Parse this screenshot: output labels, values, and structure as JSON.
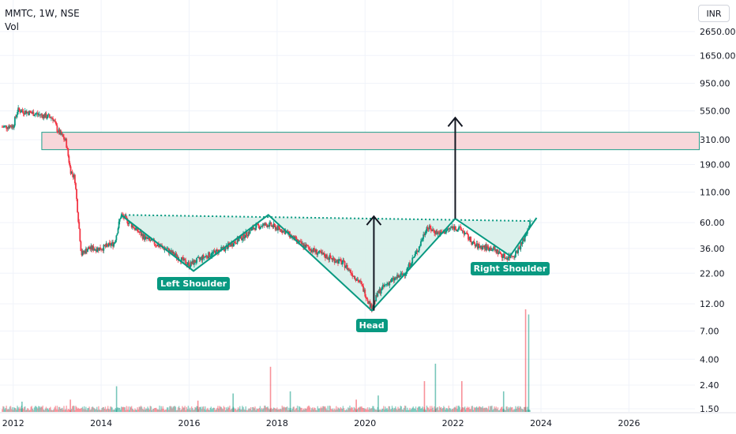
{
  "header": {
    "symbol_line": "MMTC, 1W, NSE",
    "indicator": "Vol",
    "currency": "INR"
  },
  "colors": {
    "up": "#089981",
    "down": "#f23645",
    "zone_fill": "#f8d7da",
    "zone_border": "#1e9e8a",
    "neckline": "#089981",
    "pattern_fill": "#d8f0ea",
    "arrow": "#131722"
  },
  "chart_data": {
    "type": "candlestick",
    "title": "MMTC, 1W, NSE",
    "y_scale": "log",
    "y_ticks": [
      "2650.00",
      "1650.00",
      "950.00",
      "550.00",
      "310.00",
      "190.00",
      "110.00",
      "60.00",
      "36.00",
      "22.00",
      "12.00",
      "7.00",
      "4.00",
      "2.40",
      "1.50"
    ],
    "x_ticks": [
      "2012",
      "2014",
      "2016",
      "2018",
      "2020",
      "2022",
      "2024",
      "2026"
    ],
    "xlim": [
      2011.7,
      2027.5
    ],
    "price_path": [
      {
        "x": 2011.75,
        "y": 400
      },
      {
        "x": 2012.0,
        "y": 410
      },
      {
        "x": 2012.1,
        "y": 560
      },
      {
        "x": 2012.5,
        "y": 520
      },
      {
        "x": 2012.9,
        "y": 480
      },
      {
        "x": 2013.0,
        "y": 380
      },
      {
        "x": 2013.2,
        "y": 300
      },
      {
        "x": 2013.3,
        "y": 170
      },
      {
        "x": 2013.4,
        "y": 145
      },
      {
        "x": 2013.55,
        "y": 32
      },
      {
        "x": 2013.7,
        "y": 36
      },
      {
        "x": 2014.0,
        "y": 36
      },
      {
        "x": 2014.3,
        "y": 40
      },
      {
        "x": 2014.45,
        "y": 70
      },
      {
        "x": 2014.6,
        "y": 62
      },
      {
        "x": 2015.0,
        "y": 44
      },
      {
        "x": 2015.5,
        "y": 35
      },
      {
        "x": 2016.0,
        "y": 26
      },
      {
        "x": 2016.3,
        "y": 30
      },
      {
        "x": 2016.8,
        "y": 36
      },
      {
        "x": 2017.2,
        "y": 45
      },
      {
        "x": 2017.5,
        "y": 55
      },
      {
        "x": 2017.8,
        "y": 58
      },
      {
        "x": 2018.2,
        "y": 50
      },
      {
        "x": 2018.5,
        "y": 40
      },
      {
        "x": 2019.0,
        "y": 32
      },
      {
        "x": 2019.5,
        "y": 27
      },
      {
        "x": 2019.9,
        "y": 18
      },
      {
        "x": 2020.15,
        "y": 11
      },
      {
        "x": 2020.3,
        "y": 15
      },
      {
        "x": 2020.5,
        "y": 18
      },
      {
        "x": 2020.9,
        "y": 22
      },
      {
        "x": 2021.2,
        "y": 35
      },
      {
        "x": 2021.4,
        "y": 55
      },
      {
        "x": 2021.7,
        "y": 48
      },
      {
        "x": 2022.0,
        "y": 55
      },
      {
        "x": 2022.2,
        "y": 52
      },
      {
        "x": 2022.5,
        "y": 38
      },
      {
        "x": 2022.9,
        "y": 36
      },
      {
        "x": 2023.2,
        "y": 30
      },
      {
        "x": 2023.4,
        "y": 32
      },
      {
        "x": 2023.6,
        "y": 42
      },
      {
        "x": 2023.75,
        "y": 60
      }
    ],
    "volume_scale_max": 100,
    "volume_spikes": [
      {
        "x": 2012.2,
        "v": 10
      },
      {
        "x": 2013.3,
        "v": 12
      },
      {
        "x": 2014.35,
        "v": 25
      },
      {
        "x": 2016.2,
        "v": 11
      },
      {
        "x": 2017.0,
        "v": 18
      },
      {
        "x": 2017.85,
        "v": 44
      },
      {
        "x": 2018.3,
        "v": 20
      },
      {
        "x": 2019.8,
        "v": 12
      },
      {
        "x": 2020.3,
        "v": 16
      },
      {
        "x": 2021.35,
        "v": 30
      },
      {
        "x": 2021.6,
        "v": 47
      },
      {
        "x": 2022.2,
        "v": 30
      },
      {
        "x": 2023.15,
        "v": 20
      },
      {
        "x": 2023.65,
        "v": 100
      },
      {
        "x": 2023.72,
        "v": 95
      }
    ],
    "resistance_zone": {
      "y_top": 360,
      "y_bottom": 255,
      "x_start": 2012.65,
      "x_end": 2027.6
    },
    "neckline": [
      {
        "x": 2014.45,
        "y": 70
      },
      {
        "x": 2023.8,
        "y": 62
      }
    ],
    "pattern": {
      "name": "Inverse Head and Shoulders",
      "points": [
        {
          "x": 2014.45,
          "y": 70
        },
        {
          "x": 2016.1,
          "y": 23
        },
        {
          "x": 2017.8,
          "y": 70
        },
        {
          "x": 2020.15,
          "y": 10.5
        },
        {
          "x": 2022.05,
          "y": 65
        },
        {
          "x": 2023.3,
          "y": 31
        },
        {
          "x": 2023.9,
          "y": 66
        }
      ],
      "labels": [
        "Left Shoulder",
        "Head",
        "Right Shoulder"
      ]
    },
    "arrows": [
      {
        "x": 2020.2,
        "y_from": 10.5,
        "y_to": 68
      },
      {
        "x": 2022.05,
        "y_from": 65,
        "y_to": 480
      }
    ]
  }
}
